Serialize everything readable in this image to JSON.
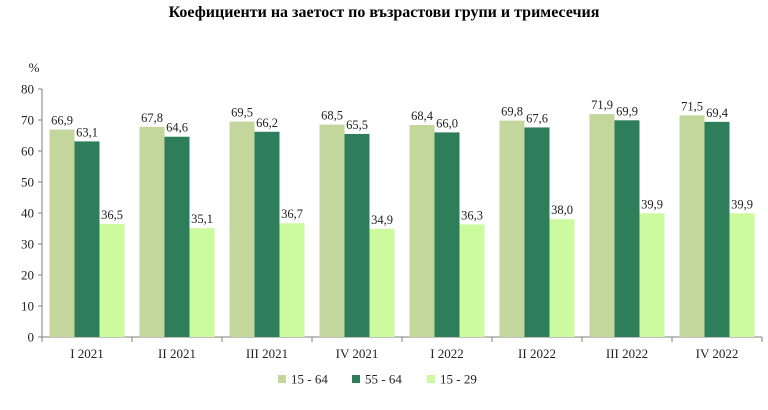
{
  "chart_data": {
    "type": "bar",
    "title": "Коефициенти на заетост по възрастови групи и тримесечия",
    "ylabel": "%",
    "xlabel": "",
    "ylim": [
      0,
      80
    ],
    "yticks": [
      0,
      10,
      20,
      30,
      40,
      50,
      60,
      70,
      80
    ],
    "grid": false,
    "legend_position": "bottom",
    "categories": [
      "I 2021",
      "II 2021",
      "III 2021",
      "IV 2021",
      "I 2022",
      "II 2022",
      "III 2022",
      "IV 2022"
    ],
    "series": [
      {
        "name": "15 - 64",
        "color": "#c3d69b",
        "values": [
          66.9,
          67.8,
          69.5,
          68.5,
          68.4,
          69.8,
          71.9,
          71.5
        ],
        "labels": [
          "66,9",
          "67,8",
          "69,5",
          "68,5",
          "68,4",
          "69,8",
          "71,9",
          "71,5"
        ]
      },
      {
        "name": "55 - 64",
        "color": "#2e7d5b",
        "values": [
          63.1,
          64.6,
          66.2,
          65.5,
          66.0,
          67.6,
          69.9,
          69.4
        ],
        "labels": [
          "63,1",
          "64,6",
          "66,2",
          "65,5",
          "66,0",
          "67,6",
          "69,9",
          "69,4"
        ]
      },
      {
        "name": "15 - 29",
        "color": "#ccfa9e",
        "values": [
          36.5,
          35.1,
          36.7,
          34.9,
          36.3,
          38.0,
          39.9,
          39.9
        ],
        "labels": [
          "36,5",
          "35,1",
          "36,7",
          "34,9",
          "36,3",
          "38,0",
          "39,9",
          "39,9"
        ]
      }
    ]
  }
}
